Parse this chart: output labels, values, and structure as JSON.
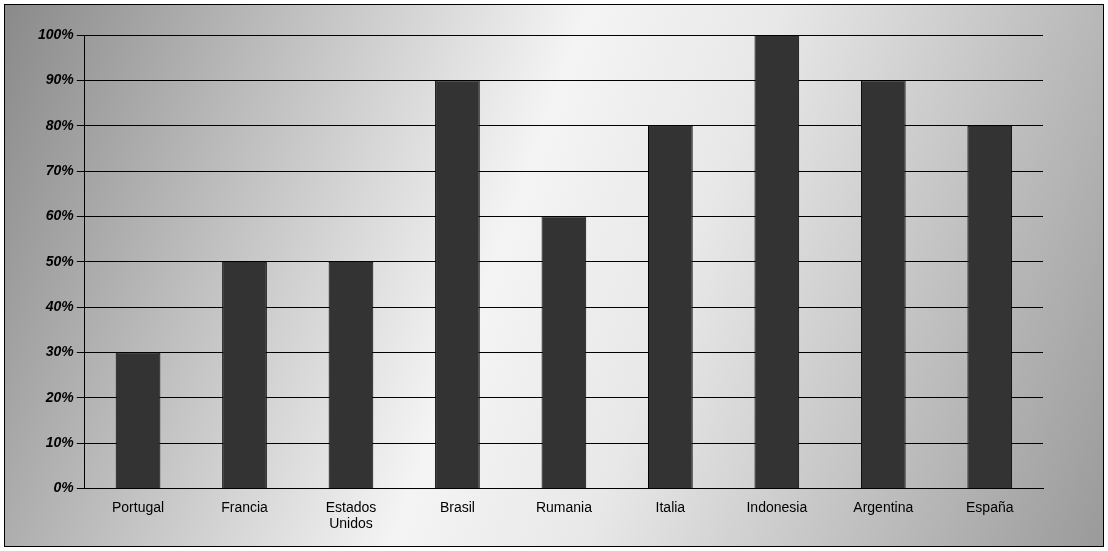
{
  "chart_data": {
    "type": "bar",
    "categories": [
      "Portugal",
      "Francia",
      "Estados Unidos",
      "Brasil",
      "Rumania",
      "Italia",
      "Indonesia",
      "Argentina",
      "España"
    ],
    "values": [
      30,
      50,
      50,
      90,
      60,
      80,
      100,
      90,
      80
    ],
    "color": "#333333",
    "ylim": [
      0,
      100
    ],
    "yticks": [
      {
        "value": 0,
        "label": "0%"
      },
      {
        "value": 10,
        "label": "10%"
      },
      {
        "value": 20,
        "label": "20%"
      },
      {
        "value": 30,
        "label": "30%"
      },
      {
        "value": 40,
        "label": "40%"
      },
      {
        "value": 50,
        "label": "50%"
      },
      {
        "value": 60,
        "label": "60%"
      },
      {
        "value": 70,
        "label": "70%"
      },
      {
        "value": 80,
        "label": "80%"
      },
      {
        "value": 90,
        "label": "90%"
      },
      {
        "value": 100,
        "label": "100%"
      }
    ],
    "grid": "y",
    "legend": false
  }
}
